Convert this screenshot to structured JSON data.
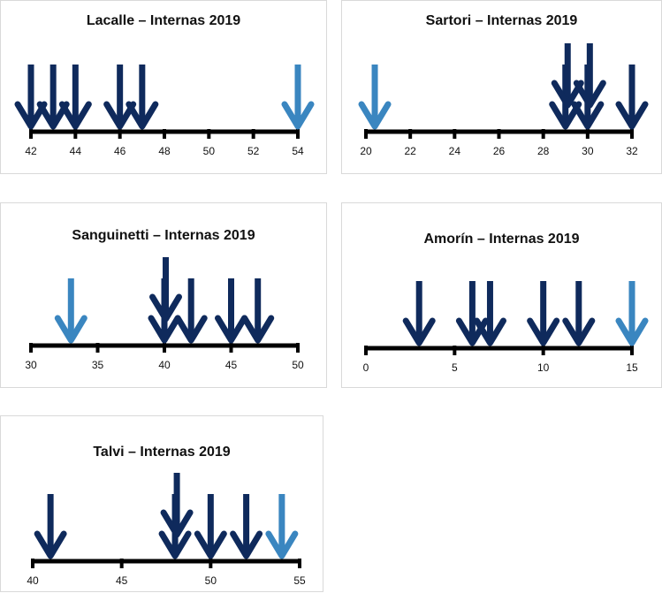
{
  "colors": {
    "dark": "#0f2a5c",
    "light": "#3a86c0",
    "axis": "#000000"
  },
  "chart_data": [
    {
      "type": "scatter",
      "title": "Lacalle – Internas 2019",
      "xlim": [
        42,
        54
      ],
      "ticks": [
        42,
        44,
        46,
        48,
        50,
        52,
        54
      ],
      "points": [
        {
          "x": 42,
          "color": "dark"
        },
        {
          "x": 43,
          "color": "dark"
        },
        {
          "x": 44,
          "color": "dark"
        },
        {
          "x": 46,
          "color": "dark"
        },
        {
          "x": 47,
          "color": "dark"
        },
        {
          "x": 54,
          "color": "light"
        }
      ]
    },
    {
      "type": "scatter",
      "title": "Sartori – Internas 2019",
      "xlim": [
        20,
        32
      ],
      "ticks": [
        20,
        22,
        24,
        26,
        28,
        30,
        32
      ],
      "points": [
        {
          "x": 20.4,
          "color": "light"
        },
        {
          "x": 29,
          "color": "dark"
        },
        {
          "x": 29.1,
          "color": "dark"
        },
        {
          "x": 30,
          "color": "dark"
        },
        {
          "x": 30.1,
          "color": "dark"
        },
        {
          "x": 32,
          "color": "dark"
        }
      ]
    },
    {
      "type": "scatter",
      "title": "Sanguinetti – Internas 2019",
      "xlim": [
        30,
        50
      ],
      "ticks": [
        30,
        35,
        40,
        45,
        50
      ],
      "points": [
        {
          "x": 33,
          "color": "light"
        },
        {
          "x": 40,
          "color": "dark"
        },
        {
          "x": 40.1,
          "color": "dark"
        },
        {
          "x": 42,
          "color": "dark"
        },
        {
          "x": 45,
          "color": "dark"
        },
        {
          "x": 47,
          "color": "dark"
        }
      ]
    },
    {
      "type": "scatter",
      "title": "Amorín – Internas 2019",
      "xlim": [
        0,
        15
      ],
      "ticks": [
        0,
        5,
        10,
        15
      ],
      "points": [
        {
          "x": 3,
          "color": "dark"
        },
        {
          "x": 6,
          "color": "dark"
        },
        {
          "x": 7,
          "color": "dark"
        },
        {
          "x": 10,
          "color": "dark"
        },
        {
          "x": 12,
          "color": "dark"
        },
        {
          "x": 15,
          "color": "light"
        }
      ]
    },
    {
      "type": "scatter",
      "title": "Talvi – Internas 2019",
      "xlim": [
        40,
        55
      ],
      "ticks": [
        40,
        45,
        50,
        55
      ],
      "points": [
        {
          "x": 41,
          "color": "dark"
        },
        {
          "x": 48,
          "color": "dark"
        },
        {
          "x": 48.1,
          "color": "dark"
        },
        {
          "x": 50,
          "color": "dark"
        },
        {
          "x": 52,
          "color": "dark"
        },
        {
          "x": 54,
          "color": "light"
        }
      ]
    }
  ]
}
